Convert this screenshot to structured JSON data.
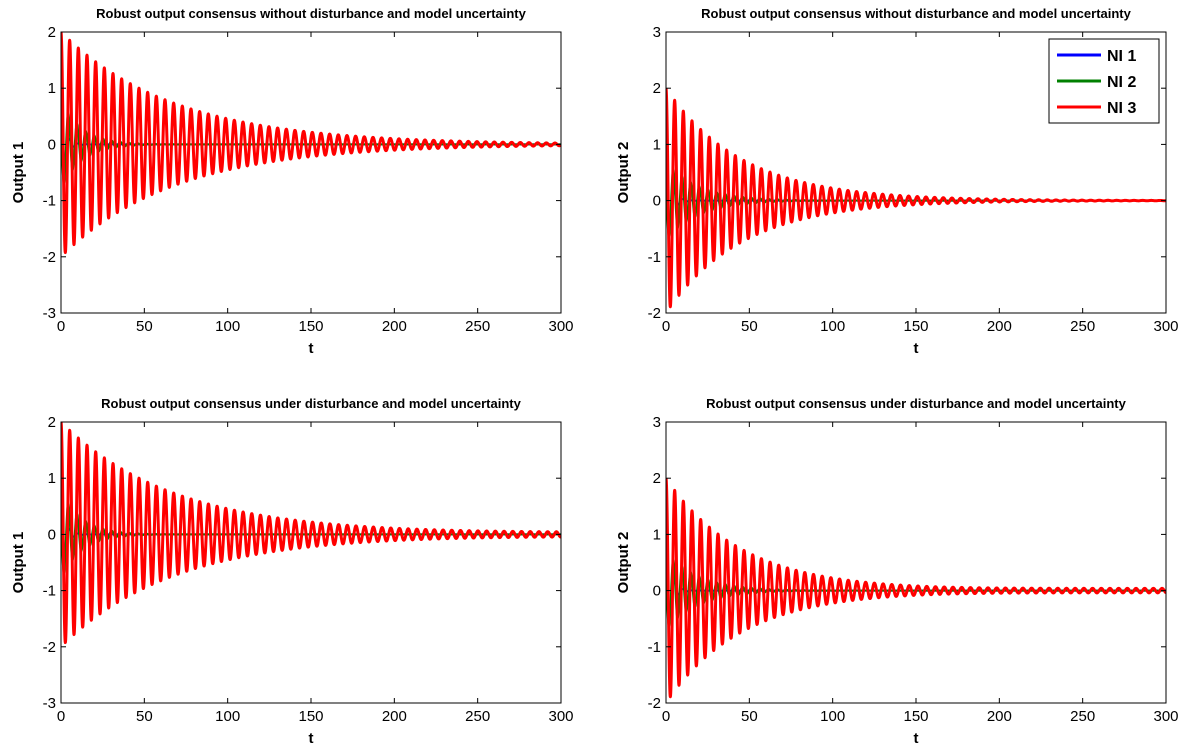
{
  "chart_data": [
    {
      "type": "line",
      "title": "Robust output consensus without disturbance and model uncertainty",
      "xlabel": "t",
      "ylabel": "Output 1",
      "xlim": [
        0,
        300
      ],
      "ylim": [
        -3,
        2
      ],
      "xticks": [
        "0",
        "50",
        "100",
        "150",
        "200",
        "250",
        "300"
      ],
      "yticks": [
        "-3",
        "-2",
        "-1",
        "0",
        "1",
        "2"
      ],
      "legend": null,
      "series": [
        {
          "name": "NI 1",
          "color": "#0000ff",
          "amplitude": 0.6,
          "decay": 0.35,
          "period": 5.2,
          "phase": 0.0
        },
        {
          "name": "NI 2",
          "color": "#008000",
          "amplitude": 0.8,
          "decay": 0.08,
          "period": 5.2,
          "phase": 1.0
        },
        {
          "name": "NI 3",
          "color": "#ff0000",
          "amplitude": 2.0,
          "decay": 0.0148,
          "period": 5.2,
          "phase": 0.0,
          "residual": 0.0
        }
      ]
    },
    {
      "type": "line",
      "title": "Robust output consensus without disturbance and model uncertainty",
      "xlabel": "t",
      "ylabel": "Output 2",
      "xlim": [
        0,
        300
      ],
      "ylim": [
        -2,
        3
      ],
      "xticks": [
        "0",
        "50",
        "100",
        "150",
        "200",
        "250",
        "300"
      ],
      "yticks": [
        "-2",
        "-1",
        "0",
        "1",
        "2",
        "3"
      ],
      "legend": {
        "position": "top-right",
        "entries": [
          "NI 1",
          "NI 2",
          "NI 3"
        ]
      },
      "series": [
        {
          "name": "NI 1",
          "color": "#0000ff",
          "amplitude": 1.0,
          "decay": 0.35,
          "period": 5.2,
          "phase": 0.0
        },
        {
          "name": "NI 2",
          "color": "#008000",
          "amplitude": 0.7,
          "decay": 0.05,
          "period": 5.2,
          "phase": 1.0
        },
        {
          "name": "NI 3",
          "color": "#ff0000",
          "amplitude": 2.0,
          "decay": 0.022,
          "period": 5.2,
          "phase": 0.0,
          "residual": 0.0
        }
      ]
    },
    {
      "type": "line",
      "title": "Robust output consensus under disturbance and model uncertainty",
      "xlabel": "t",
      "ylabel": "Output 1",
      "xlim": [
        0,
        300
      ],
      "ylim": [
        -3,
        2
      ],
      "xticks": [
        "0",
        "50",
        "100",
        "150",
        "200",
        "250",
        "300"
      ],
      "yticks": [
        "-3",
        "-2",
        "-1",
        "0",
        "1",
        "2"
      ],
      "legend": null,
      "series": [
        {
          "name": "NI 1",
          "color": "#0000ff",
          "amplitude": 0.6,
          "decay": 0.35,
          "period": 5.2,
          "phase": 0.0
        },
        {
          "name": "NI 2",
          "color": "#008000",
          "amplitude": 0.8,
          "decay": 0.08,
          "period": 5.2,
          "phase": 1.0
        },
        {
          "name": "NI 3",
          "color": "#ff0000",
          "amplitude": 2.0,
          "decay": 0.0148,
          "period": 5.2,
          "phase": 0.0,
          "residual": 0.04
        }
      ]
    },
    {
      "type": "line",
      "title": "Robust output consensus under disturbance and model uncertainty",
      "xlabel": "t",
      "ylabel": "Output 2",
      "xlim": [
        0,
        300
      ],
      "ylim": [
        -2,
        3
      ],
      "xticks": [
        "0",
        "50",
        "100",
        "150",
        "200",
        "250",
        "300"
      ],
      "yticks": [
        "-2",
        "-1",
        "0",
        "1",
        "2",
        "3"
      ],
      "legend": null,
      "series": [
        {
          "name": "NI 1",
          "color": "#0000ff",
          "amplitude": 1.0,
          "decay": 0.35,
          "period": 5.2,
          "phase": 0.0
        },
        {
          "name": "NI 2",
          "color": "#008000",
          "amplitude": 0.7,
          "decay": 0.05,
          "period": 5.2,
          "phase": 1.0
        },
        {
          "name": "NI 3",
          "color": "#ff0000",
          "amplitude": 2.0,
          "decay": 0.022,
          "period": 5.2,
          "phase": 0.0,
          "residual": 0.04
        }
      ]
    }
  ]
}
